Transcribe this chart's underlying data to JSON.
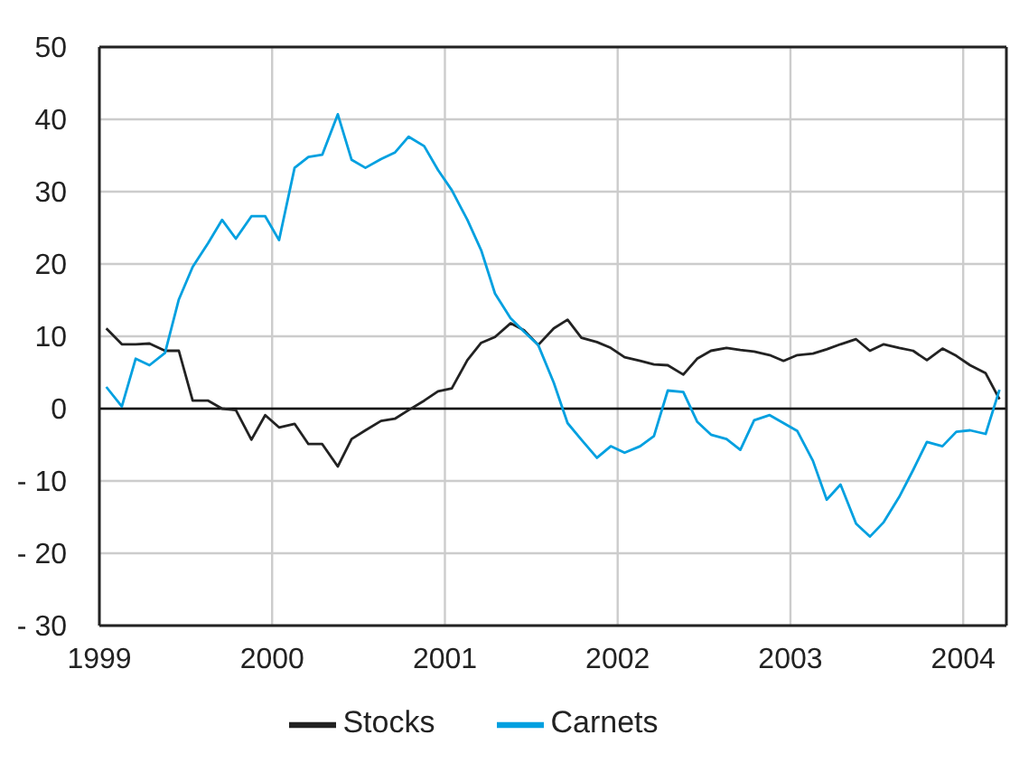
{
  "chart_data": {
    "type": "line",
    "x": [
      1999.04,
      1999.13,
      1999.21,
      1999.29,
      1999.38,
      1999.46,
      1999.54,
      1999.63,
      1999.71,
      1999.79,
      1999.88,
      1999.96,
      2000.04,
      2000.13,
      2000.21,
      2000.29,
      2000.38,
      2000.46,
      2000.54,
      2000.63,
      2000.71,
      2000.79,
      2000.88,
      2000.96,
      2001.04,
      2001.13,
      2001.21,
      2001.29,
      2001.38,
      2001.46,
      2001.54,
      2001.63,
      2001.71,
      2001.79,
      2001.88,
      2001.96,
      2002.04,
      2002.13,
      2002.21,
      2002.29,
      2002.38,
      2002.46,
      2002.54,
      2002.63,
      2002.71,
      2002.79,
      2002.88,
      2002.96,
      2003.04,
      2003.13,
      2003.21,
      2003.29,
      2003.38,
      2003.46,
      2003.54,
      2003.63,
      2003.71,
      2003.79,
      2003.88,
      2003.96,
      2004.04,
      2004.13,
      2004.21
    ],
    "series": [
      {
        "name": "Stocks",
        "color": "#222222",
        "values": [
          11.1,
          8.9,
          8.9,
          9.0,
          8.0,
          8.0,
          1.1,
          1.1,
          0,
          -0.2,
          -4.3,
          -0.9,
          -2.6,
          -2.1,
          -4.9,
          -4.9,
          -8.0,
          -4.2,
          -3.0,
          -1.7,
          -1.4,
          -0.2,
          1.1,
          2.4,
          2.8,
          6.7,
          9.1,
          9.9,
          11.8,
          10.8,
          8.8,
          11.1,
          12.3,
          9.8,
          9.2,
          8.4,
          7.1,
          6.6,
          6.1,
          6.0,
          4.7,
          6.9,
          8.0,
          8.4,
          8.1,
          7.9,
          7.4,
          6.6,
          7.4,
          7.6,
          8.2,
          8.9,
          9.6,
          8.0,
          8.9,
          8.4,
          8.0,
          6.7,
          8.3,
          7.3,
          6.0,
          4.9,
          1.3
        ]
      },
      {
        "name": "Carnets",
        "color": "#00a0e0",
        "values": [
          3.0,
          0.3,
          6.9,
          6.0,
          7.7,
          15.1,
          19.6,
          22.9,
          26.1,
          23.5,
          26.6,
          26.6,
          23.3,
          33.3,
          34.8,
          35.1,
          40.7,
          34.4,
          33.3,
          34.5,
          35.4,
          37.6,
          36.3,
          33.0,
          30.2,
          26.1,
          21.9,
          15.9,
          12.5,
          10.6,
          8.8,
          3.6,
          -2.0,
          -4.3,
          -6.8,
          -5.2,
          -6.1,
          -5.2,
          -3.8,
          2.5,
          2.3,
          -1.8,
          -3.6,
          -4.2,
          -5.7,
          -1.6,
          -0.9,
          -2.0,
          -3.1,
          -7.2,
          -12.6,
          -10.5,
          -15.9,
          -17.7,
          -15.7,
          -12.2,
          -8.5,
          -4.6,
          -5.2,
          -3.2,
          -3.0,
          -3.5,
          2.6
        ]
      }
    ],
    "xlim": [
      1999,
      2004.25
    ],
    "xticks": [
      1999,
      2000,
      2001,
      2002,
      2003,
      2004
    ],
    "ylim": [
      -30,
      50
    ],
    "yticks": [
      {
        "value": -30,
        "label": "- 30"
      },
      {
        "value": -20,
        "label": "- 20"
      },
      {
        "value": -10,
        "label": "- 10"
      },
      0,
      10,
      20,
      30,
      40,
      50
    ],
    "ref_lines": [
      {
        "axis": "y",
        "value": 0,
        "color": "#000000"
      }
    ],
    "grid": true,
    "legend": "bottom",
    "marker": "none",
    "line_style": "solid"
  }
}
